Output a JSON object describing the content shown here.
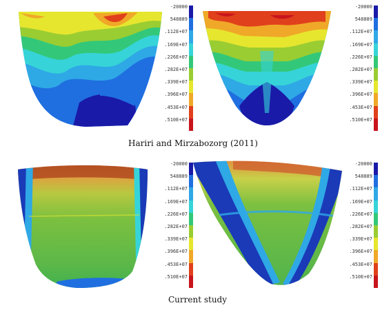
{
  "captions": {
    "top": "Hariri and Mirzabozorg (2011)",
    "bottom": "Current study"
  },
  "legend": {
    "labels": [
      "-20000",
      "548889",
      ".112E+07",
      ".169E+07",
      ".226E+07",
      ".282E+07",
      ".339E+07",
      ".396E+07",
      ".453E+07",
      ".510E+07"
    ],
    "colors": [
      "#1a1aa8",
      "#1f6fe0",
      "#2fa8e6",
      "#36d4d8",
      "#33c879",
      "#9acd32",
      "#e6e62e",
      "#f0a828",
      "#e0401c",
      "#c8141c"
    ]
  },
  "panels": [
    {
      "id": "top-left",
      "palette": "contour-rainbow"
    },
    {
      "id": "top-right",
      "palette": "contour-rainbow"
    },
    {
      "id": "bottom-left",
      "palette": "smooth-green"
    },
    {
      "id": "bottom-right",
      "palette": "smooth-green"
    }
  ]
}
